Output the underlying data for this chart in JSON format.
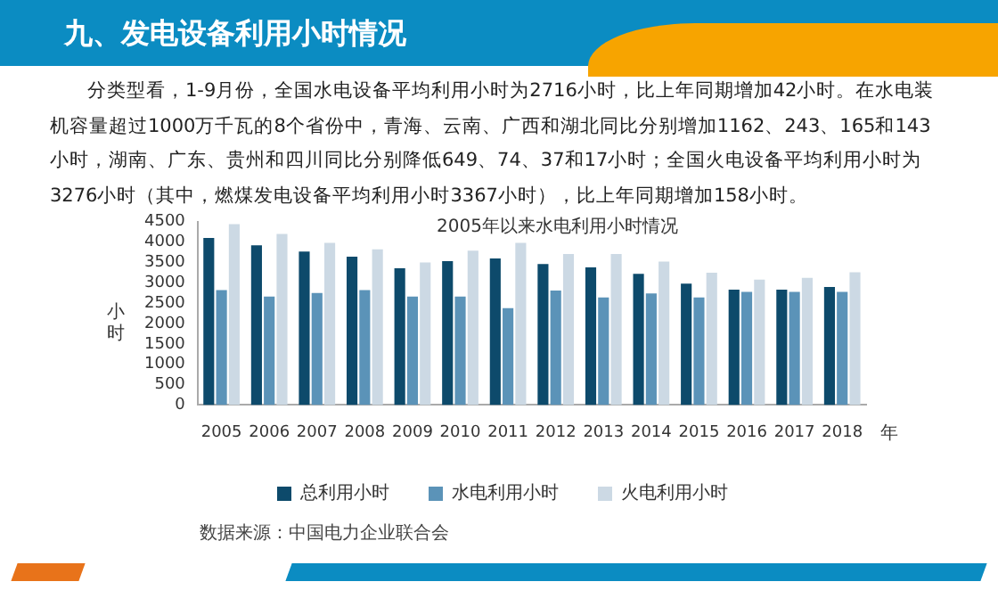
{
  "chart_data": {
    "type": "bar",
    "title": "九、发电设备利用小时情况",
    "subtitle": "分类型看，1-9月份，全国水电设备平均利用小时为2716小时，比上年同期增加42小时。在水电装机容量超过1000万千瓦的8个省份中，青海、云南、广西和湖北同比分别增加1162、243、165和143小时，湖南、广东、贵州和四川同比分别降低649、74、37和17小时；全国火电设备平均利用小时为3276小时（其中，燃煤发电设备平均利用小时3367小时），比上年同期增加158小时。",
    "annotations": [
      "2005年以来水电利用小时情况",
      "数据来源：中国电力企业联合会"
    ],
    "xlabel": "年",
    "ylabel": "小时",
    "categories": [
      "2005",
      "2006",
      "2007",
      "2008",
      "2009",
      "2010",
      "2011",
      "2012",
      "2013",
      "2014",
      "2015",
      "2016",
      "2017",
      "2018"
    ],
    "series": [
      {
        "name": "总利用小时",
        "color": "#0d4a6b",
        "values": [
          4100,
          3920,
          3770,
          3640,
          3360,
          3530,
          3600,
          3460,
          3380,
          3220,
          2980,
          2830,
          2830,
          2900
        ]
      },
      {
        "name": "水电利用小时",
        "color": "#5b93b8",
        "values": [
          2820,
          2660,
          2750,
          2820,
          2660,
          2660,
          2380,
          2810,
          2640,
          2740,
          2640,
          2780,
          2780,
          2780
        ]
      },
      {
        "name": "火电利用小时",
        "color": "#ccd9e4",
        "values": [
          4440,
          4200,
          3980,
          3820,
          3500,
          3790,
          3980,
          3710,
          3710,
          3520,
          3250,
          3080,
          3120,
          3260
        ]
      }
    ],
    "ylim": [
      0,
      4500
    ],
    "yticks": [
      0,
      500,
      1000,
      1500,
      2000,
      2500,
      3000,
      3500,
      4000,
      4500
    ],
    "legend": "bottom"
  }
}
